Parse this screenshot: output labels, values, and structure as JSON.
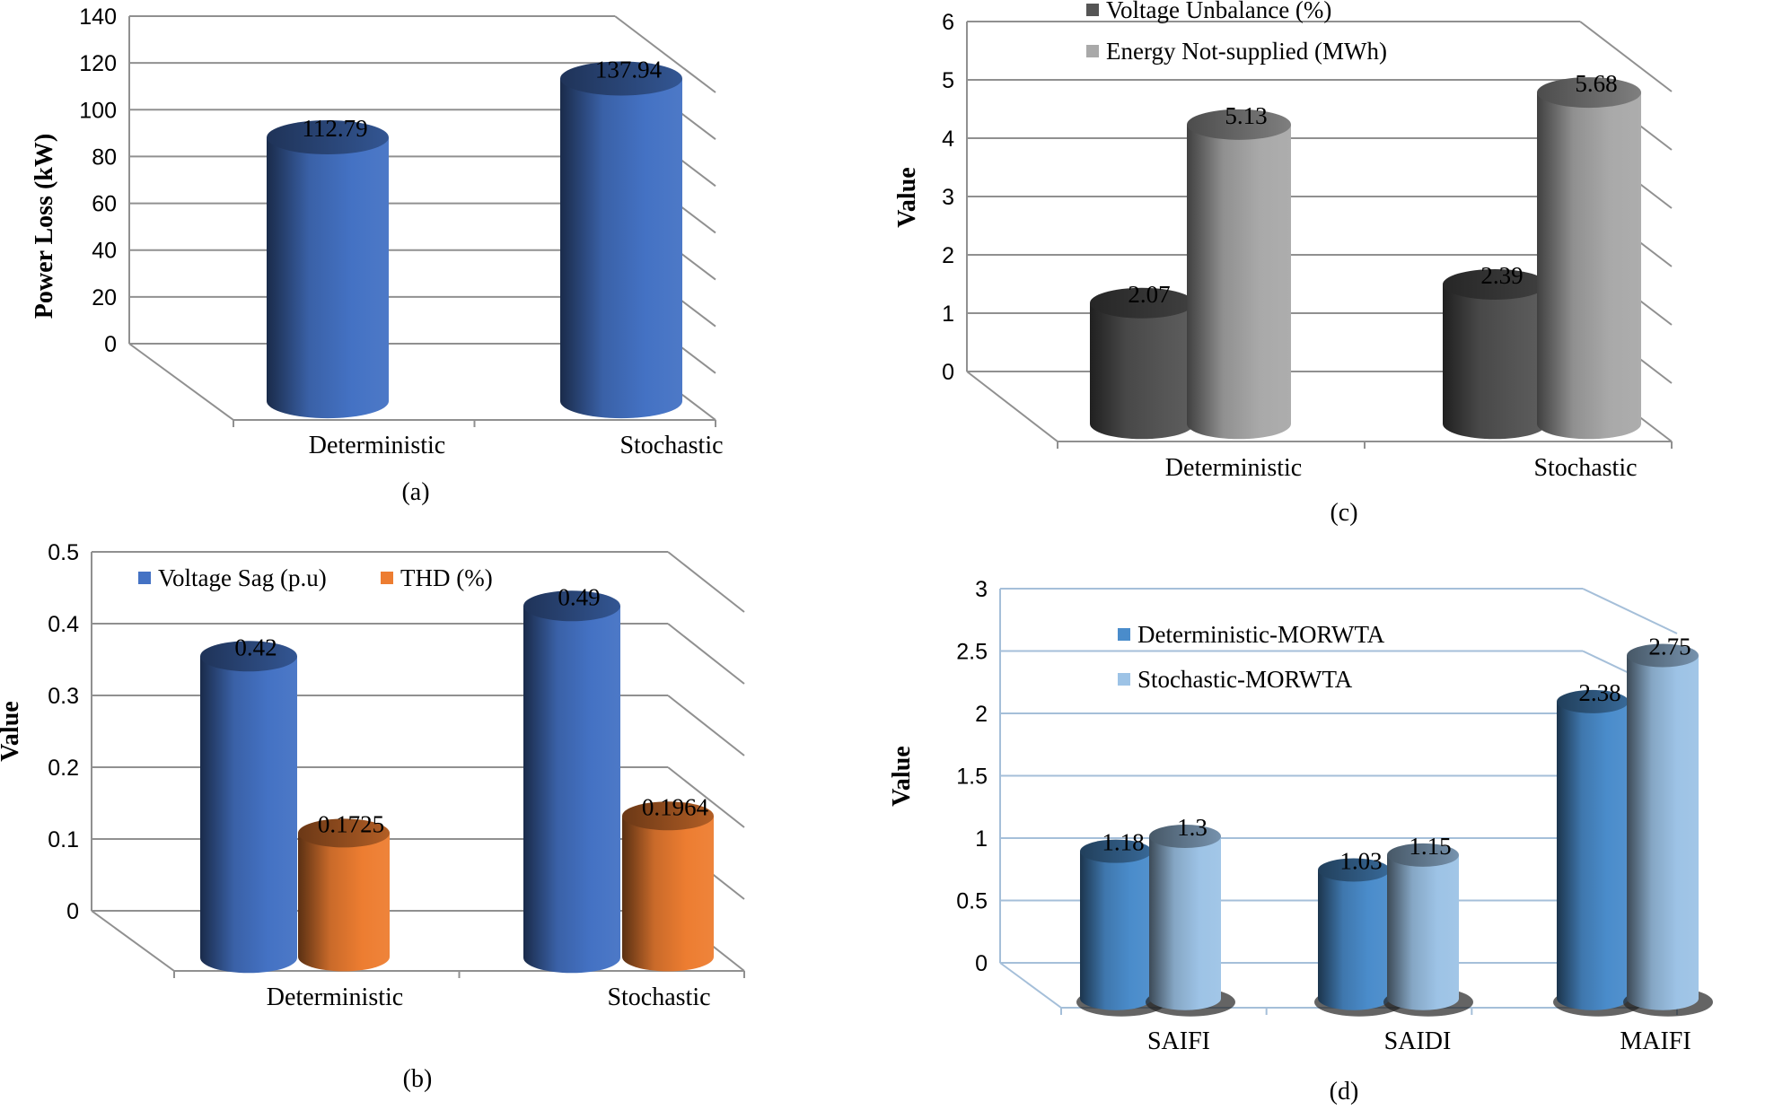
{
  "chart_data": [
    {
      "id": "a",
      "type": "bar",
      "caption": "(a)",
      "ylabel": "Power Loss (kW)",
      "ylim": [
        0,
        140
      ],
      "yticks": [
        0,
        20,
        40,
        60,
        80,
        100,
        120,
        140
      ],
      "categories": [
        "Deterministic",
        "Stochastic"
      ],
      "series": [
        {
          "name": "Power Loss (kW)",
          "values": [
            112.79,
            137.94
          ],
          "labels": [
            "112.79",
            "137.94"
          ],
          "color": "#4472c4"
        }
      ],
      "legend": null
    },
    {
      "id": "b",
      "type": "bar",
      "caption": "(b)",
      "ylabel": "Value",
      "ylim": [
        0,
        0.5
      ],
      "yticks": [
        0,
        0.1,
        0.2,
        0.3,
        0.4,
        0.5
      ],
      "categories": [
        "Deterministic",
        "Stochastic"
      ],
      "series": [
        {
          "name": "Voltage Sag (p.u)",
          "values": [
            0.42,
            0.49
          ],
          "labels": [
            "0.42",
            "0.49"
          ],
          "color": "#4472c4"
        },
        {
          "name": "THD (%)",
          "values": [
            0.1725,
            0.1964
          ],
          "labels": [
            "0.1725",
            "0.1964"
          ],
          "color": "#ed7d31"
        }
      ],
      "legend": "top-left"
    },
    {
      "id": "c",
      "type": "bar",
      "caption": "(c)",
      "ylabel": "Value",
      "ylim": [
        0,
        6
      ],
      "yticks": [
        0,
        1,
        2,
        3,
        4,
        5,
        6
      ],
      "categories": [
        "Deterministic",
        "Stochastic"
      ],
      "series": [
        {
          "name": "Voltage Unbalance (%)",
          "values": [
            2.07,
            2.39
          ],
          "labels": [
            "2.07",
            "2.39"
          ],
          "color": "#555555"
        },
        {
          "name": "Energy Not-supplied (MWh)",
          "values": [
            5.13,
            5.68
          ],
          "labels": [
            "5.13",
            "5.68"
          ],
          "color": "#a9a9a9"
        }
      ],
      "legend": "top-left"
    },
    {
      "id": "d",
      "type": "bar",
      "caption": "(d)",
      "ylabel": "Value",
      "ylim": [
        0,
        3
      ],
      "yticks": [
        0,
        0.5,
        1,
        1.5,
        2,
        2.5,
        3
      ],
      "categories": [
        "SAIFI",
        "SAIDI",
        "MAIFI"
      ],
      "series": [
        {
          "name": "Deterministic-MORWTA",
          "values": [
            1.18,
            1.03,
            2.38
          ],
          "labels": [
            "1.18",
            "1.03",
            "2.38"
          ],
          "color": "#4a8ccb"
        },
        {
          "name": "Stochastic-MORWTA",
          "values": [
            1.3,
            1.15,
            2.75
          ],
          "labels": [
            "1.3",
            "1.15",
            "2.75"
          ],
          "color": "#9dc3e6"
        }
      ],
      "legend": "top-left"
    }
  ]
}
